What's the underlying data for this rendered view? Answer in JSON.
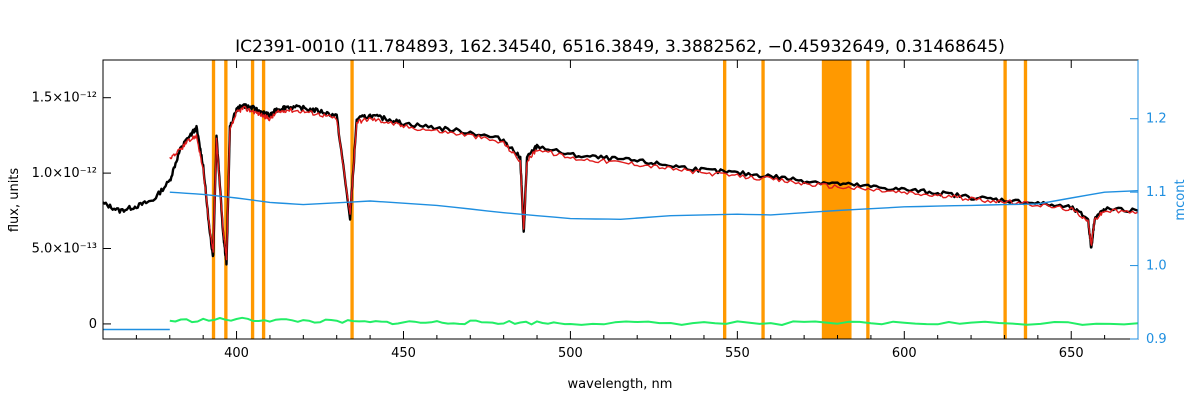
{
  "chart_data": {
    "type": "line",
    "title": "IC2391-0010   (11.784893, 162.34540, 6516.3849, 3.3882562, −0.45932649, 0.31468645)",
    "xlabel": "wavelength, nm",
    "ylabel": "flux, units",
    "y2label": "mcont",
    "xlim": [
      360,
      670
    ],
    "ylim": [
      -1e-13,
      1.75e-12
    ],
    "y2lim": [
      0.9,
      1.28
    ],
    "x_ticks": [
      {
        "value": 400,
        "label": "400"
      },
      {
        "value": 450,
        "label": "450"
      },
      {
        "value": 500,
        "label": "500"
      },
      {
        "value": 550,
        "label": "550"
      },
      {
        "value": 600,
        "label": "600"
      },
      {
        "value": 650,
        "label": "650"
      }
    ],
    "y_ticks": [
      {
        "value": 0,
        "label": "0"
      },
      {
        "value": 5e-13,
        "label": "5.0×10⁻¹³"
      },
      {
        "value": 1e-12,
        "label": "1.0×10⁻¹²"
      },
      {
        "value": 1.5e-12,
        "label": "1.5×10⁻¹²"
      }
    ],
    "y2_ticks": [
      {
        "value": 0.9,
        "label": "0.9"
      },
      {
        "value": 1.0,
        "label": "1.0"
      },
      {
        "value": 1.1,
        "label": "1.1"
      },
      {
        "value": 1.2,
        "label": "1.2"
      }
    ],
    "masked_regions_nm": [
      [
        392.6,
        393.6
      ],
      [
        396.3,
        397.3
      ],
      [
        404.3,
        405.3
      ],
      [
        407.6,
        408.6
      ],
      [
        434.1,
        435.1
      ],
      [
        545.7,
        546.7
      ],
      [
        557.2,
        558.2
      ],
      [
        575.3,
        584.2
      ],
      [
        588.6,
        589.6
      ],
      [
        629.7,
        630.7
      ],
      [
        635.8,
        636.8
      ]
    ],
    "series": [
      {
        "role": "observed spectrum",
        "color": "#000000",
        "x": [
          360,
          365,
          370,
          375,
          380,
          383,
          385,
          388,
          390,
          392,
          393,
          394,
          396,
          397,
          398,
          400,
          402,
          405,
          408,
          410,
          412,
          415,
          420,
          425,
          430,
          434,
          436,
          440,
          445,
          450,
          460,
          470,
          480,
          485,
          486,
          487,
          490,
          500,
          510,
          520,
          530,
          540,
          550,
          560,
          570,
          580,
          590,
          600,
          610,
          620,
          630,
          640,
          650,
          655,
          656,
          657,
          660,
          670
        ],
        "y": [
          8e-13,
          7.5e-13,
          7.8e-13,
          8.2e-13,
          9.5e-13,
          1.15e-12,
          1.22e-12,
          1.3e-12,
          1.05e-12,
          6e-13,
          4.5e-13,
          1.25e-12,
          6e-13,
          4e-13,
          1.3e-12,
          1.42e-12,
          1.45e-12,
          1.43e-12,
          1.4e-12,
          1.38e-12,
          1.42e-12,
          1.44e-12,
          1.43e-12,
          1.41e-12,
          1.38e-12,
          7e-13,
          1.36e-12,
          1.38e-12,
          1.36e-12,
          1.33e-12,
          1.3e-12,
          1.27e-12,
          1.22e-12,
          1.1e-12,
          6e-13,
          1.1e-12,
          1.18e-12,
          1.12e-12,
          1.1e-12,
          1.08e-12,
          1.05e-12,
          1.02e-12,
          1e-12,
          9.8e-13,
          9.5e-13,
          9.3e-13,
          9.1e-13,
          8.9e-13,
          8.7e-13,
          8.4e-13,
          8.2e-13,
          8e-13,
          7.7e-13,
          7e-13,
          5e-13,
          7e-13,
          7.6e-13,
          7.5e-13
        ]
      },
      {
        "role": "model spectrum",
        "color": "#e01b1b",
        "x": [
          380,
          383,
          385,
          388,
          390,
          392,
          393,
          394,
          396,
          397,
          398,
          400,
          402,
          405,
          408,
          410,
          412,
          415,
          420,
          425,
          430,
          434,
          436,
          440,
          445,
          450,
          460,
          470,
          480,
          485,
          486,
          487,
          490,
          500,
          510,
          520,
          530,
          540,
          550,
          560,
          570,
          580,
          590,
          600,
          610,
          620,
          630,
          640,
          650,
          655,
          656,
          657,
          660,
          670
        ],
        "y": [
          1.1e-12,
          1.15e-12,
          1.2e-12,
          1.25e-12,
          1.02e-12,
          6.2e-13,
          4.8e-13,
          1.22e-12,
          6.2e-13,
          4.2e-13,
          1.28e-12,
          1.4e-12,
          1.43e-12,
          1.41e-12,
          1.38e-12,
          1.36e-12,
          1.4e-12,
          1.42e-12,
          1.41e-12,
          1.39e-12,
          1.36e-12,
          7.2e-13,
          1.34e-12,
          1.36e-12,
          1.34e-12,
          1.31e-12,
          1.28e-12,
          1.25e-12,
          1.2e-12,
          1.08e-12,
          6.2e-13,
          1.08e-12,
          1.16e-12,
          1.1e-12,
          1.08e-12,
          1.06e-12,
          1.03e-12,
          1e-12,
          9.8e-13,
          9.6e-13,
          9.3e-13,
          9.1e-13,
          8.9e-13,
          8.7e-13,
          8.5e-13,
          8.3e-13,
          8.1e-13,
          7.9e-13,
          7.6e-13,
          6.9e-13,
          5.2e-13,
          6.9e-13,
          7.5e-13,
          7.4e-13
        ]
      },
      {
        "role": "continuum multiplier (right axis)",
        "axis": "right",
        "color": "#1f8fe0",
        "x": [
          380,
          390,
          400,
          410,
          420,
          440,
          460,
          480,
          500,
          515,
          530,
          550,
          560,
          580,
          600,
          620,
          640,
          660,
          670
        ],
        "y": [
          1.1,
          1.097,
          1.092,
          1.086,
          1.083,
          1.088,
          1.082,
          1.072,
          1.064,
          1.063,
          1.068,
          1.07,
          1.069,
          1.075,
          1.08,
          1.082,
          1.084,
          1.1,
          1.102
        ]
      },
      {
        "role": "continuum multiplier extension (right axis)",
        "axis": "right",
        "color": "#1f8fe0",
        "x": [
          360,
          380
        ],
        "y": [
          0.913,
          0.913
        ]
      },
      {
        "role": "residuals",
        "color": "#22ee66",
        "x": [
          380,
          400,
          420,
          440,
          460,
          480,
          500,
          540,
          580,
          620,
          670
        ],
        "y": [
          2e-14,
          3e-14,
          2e-14,
          1e-14,
          1e-14,
          1e-14,
          5e-15,
          5e-15,
          5e-15,
          5e-15,
          5e-15
        ]
      }
    ]
  }
}
